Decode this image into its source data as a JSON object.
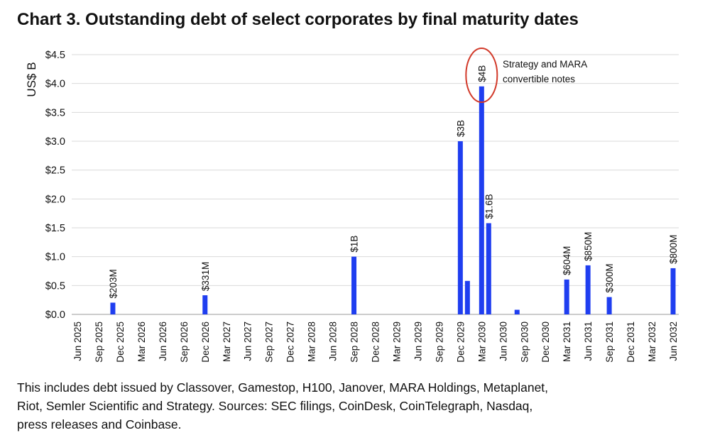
{
  "title": "Chart 3. Outstanding debt of select corporates by final maturity dates",
  "caption": {
    "line1": "This includes debt issued by Classover, Gamestop, H100, Janover, MARA Holdings, Metaplanet,",
    "line2": "Riot, Semler Scientific and Strategy. Sources: SEC filings, CoinDesk, CoinTelegraph, Nasdaq,",
    "line3": "press releases and Coinbase."
  },
  "colors": {
    "bar": "#1f3ef0",
    "highlight_circle": "#d23a2a",
    "grid": "#d9d9d9"
  },
  "chart_data": {
    "type": "bar",
    "title": "Chart 3. Outstanding debt of select corporates by final maturity dates",
    "ylabel": "US$ B",
    "xlabel": "",
    "ylim": [
      0,
      4.5
    ],
    "yticks": [
      0,
      0.5,
      1.0,
      1.5,
      2.0,
      2.5,
      3.0,
      3.5,
      4.0,
      4.5
    ],
    "ytick_labels": [
      "$0.0",
      "$0.5",
      "$1.0",
      "$1.5",
      "$2.0",
      "$2.5",
      "$3.0",
      "$3.5",
      "$4.0",
      "$4.5"
    ],
    "month_start": "Jun 2025",
    "month_end": "Jun 2032",
    "xtick_labels": [
      "Jun 2025",
      "Sep 2025",
      "Dec 2025",
      "Mar 2026",
      "Jun 2026",
      "Sep 2026",
      "Dec 2026",
      "Mar 2027",
      "Jun 2027",
      "Sep 2027",
      "Dec 2027",
      "Mar 2028",
      "Jun 2028",
      "Sep 2028",
      "Dec 2028",
      "Mar 2029",
      "Jun 2029",
      "Sep 2029",
      "Dec 2029",
      "Mar 2030",
      "Jun 2030",
      "Sep 2030",
      "Dec 2030",
      "Mar 2031",
      "Jun 2031",
      "Sep 2031",
      "Dec 2031",
      "Mar 2032",
      "Jun 2032"
    ],
    "bars": [
      {
        "month_index": 5,
        "value": 0.203,
        "label": "$203M"
      },
      {
        "month_index": 18,
        "value": 0.331,
        "label": "$331M"
      },
      {
        "month_index": 39,
        "value": 1.0,
        "label": "$1B"
      },
      {
        "month_index": 54,
        "value": 3.0,
        "label": "$3B"
      },
      {
        "month_index": 55,
        "value": 0.58,
        "label": ""
      },
      {
        "month_index": 57,
        "value": 3.95,
        "label": "$4B",
        "highlight": true
      },
      {
        "month_index": 58,
        "value": 1.58,
        "label": "$1.6B"
      },
      {
        "month_index": 62,
        "value": 0.08,
        "label": ""
      },
      {
        "month_index": 69,
        "value": 0.604,
        "label": "$604M"
      },
      {
        "month_index": 72,
        "value": 0.85,
        "label": "$850M"
      },
      {
        "month_index": 75,
        "value": 0.3,
        "label": "$300M"
      },
      {
        "month_index": 84,
        "value": 0.8,
        "label": "$800M"
      }
    ],
    "annotation": {
      "line1": "Strategy and MARA",
      "line2": "convertible notes"
    }
  }
}
